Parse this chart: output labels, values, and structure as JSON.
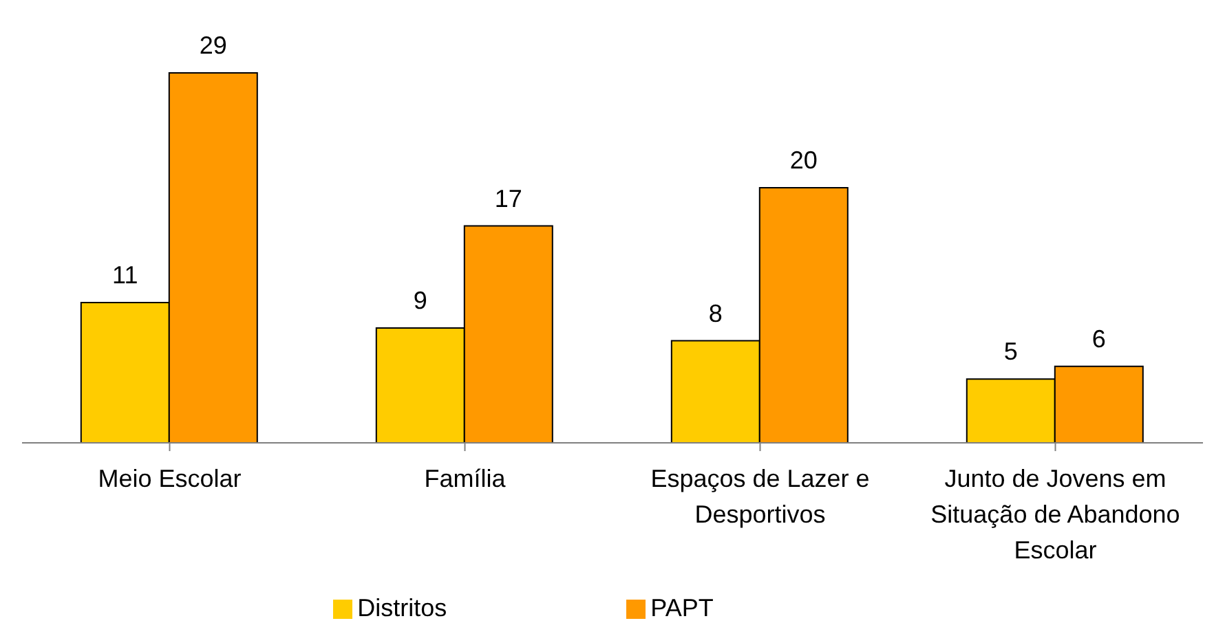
{
  "chart_data": {
    "type": "bar",
    "categories": [
      "Meio Escolar",
      "Família",
      "Espaços de Lazer e Desportivos",
      "Junto de Jovens em Situação de Abandono Escolar"
    ],
    "series": [
      {
        "name": "Distritos",
        "color": "#ffcc00",
        "values": [
          11,
          9,
          8,
          5
        ]
      },
      {
        "name": "PAPT",
        "color": "#ff9900",
        "values": [
          29,
          17,
          20,
          6
        ]
      }
    ],
    "data_labels": true,
    "legend": "bottom",
    "grid": false
  }
}
